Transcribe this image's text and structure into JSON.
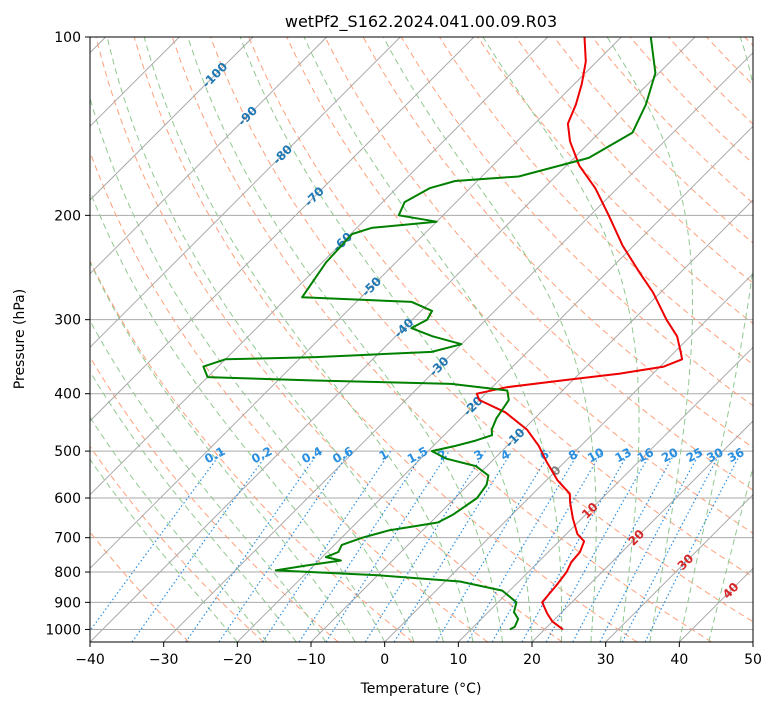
{
  "chart_data": {
    "type": "line",
    "subtype": "skew-T log-P diagram",
    "title": "wetPf2_S162.2024.041.00.09.R03",
    "xlabel": "Temperature (°C)",
    "ylabel": "Pressure (hPa)",
    "xlim": [
      -40,
      50
    ],
    "ylim": [
      1050,
      100
    ],
    "y_scale": "log",
    "x_ticks": [
      "−40",
      "−30",
      "−20",
      "−10",
      "0",
      "10",
      "20",
      "30",
      "40",
      "50"
    ],
    "x_tick_values": [
      -40,
      -30,
      -20,
      -10,
      0,
      10,
      20,
      30,
      40,
      50
    ],
    "y_ticks": [
      "100",
      "200",
      "300",
      "400",
      "500",
      "600",
      "700",
      "800",
      "900",
      "1000"
    ],
    "y_tick_values": [
      100,
      200,
      300,
      400,
      500,
      600,
      700,
      800,
      900,
      1000
    ],
    "grid": true,
    "colors": {
      "temperature": "#ee0000",
      "dewpoint": "#008000",
      "isotherm": "#aaaaaa",
      "dry_adiabat": "#ffa07a",
      "moist_adiabat": "#90c890",
      "mixing_ratio": "#2a8fe0"
    },
    "series": [
      {
        "role": "temperature",
        "color": "#ee0000",
        "points": [
          {
            "p": 1000,
            "t": 22.5
          },
          {
            "p": 970,
            "t": 20.0
          },
          {
            "p": 940,
            "t": 18.2
          },
          {
            "p": 900,
            "t": 16.0
          },
          {
            "p": 870,
            "t": 15.8
          },
          {
            "p": 840,
            "t": 15.6
          },
          {
            "p": 800,
            "t": 15.2
          },
          {
            "p": 770,
            "t": 14.5
          },
          {
            "p": 740,
            "t": 14.3
          },
          {
            "p": 710,
            "t": 13.4
          },
          {
            "p": 690,
            "t": 11.5
          },
          {
            "p": 650,
            "t": 8.8
          },
          {
            "p": 610,
            "t": 6.2
          },
          {
            "p": 590,
            "t": 5.0
          },
          {
            "p": 560,
            "t": 1.5
          },
          {
            "p": 520,
            "t": -2.6
          },
          {
            "p": 490,
            "t": -5.7
          },
          {
            "p": 460,
            "t": -9.5
          },
          {
            "p": 430,
            "t": -14.8
          },
          {
            "p": 410,
            "t": -20.0
          },
          {
            "p": 400,
            "t": -21.2
          },
          {
            "p": 390,
            "t": -18.0
          },
          {
            "p": 380,
            "t": -11.5
          },
          {
            "p": 370,
            "t": -4.5
          },
          {
            "p": 360,
            "t": 0.5
          },
          {
            "p": 350,
            "t": 2.0
          },
          {
            "p": 340,
            "t": 0.8
          },
          {
            "p": 320,
            "t": -1.8
          },
          {
            "p": 300,
            "t": -5.5
          },
          {
            "p": 270,
            "t": -11.0
          },
          {
            "p": 250,
            "t": -15.5
          },
          {
            "p": 225,
            "t": -21.5
          },
          {
            "p": 200,
            "t": -27.5
          },
          {
            "p": 180,
            "t": -33.0
          },
          {
            "p": 165,
            "t": -38.2
          },
          {
            "p": 150,
            "t": -42.8
          },
          {
            "p": 140,
            "t": -45.5
          },
          {
            "p": 130,
            "t": -47.0
          },
          {
            "p": 120,
            "t": -49.0
          },
          {
            "p": 110,
            "t": -51.5
          },
          {
            "p": 100,
            "t": -55.0
          }
        ]
      },
      {
        "role": "dewpoint",
        "color": "#008000",
        "points": [
          {
            "p": 1000,
            "t": 15.3
          },
          {
            "p": 990,
            "t": 15.6
          },
          {
            "p": 960,
            "t": 15.0
          },
          {
            "p": 935,
            "t": 13.5
          },
          {
            "p": 900,
            "t": 12.5
          },
          {
            "p": 860,
            "t": 9.0
          },
          {
            "p": 830,
            "t": 2.0
          },
          {
            "p": 810,
            "t": -10.0
          },
          {
            "p": 795,
            "t": -24.5
          },
          {
            "p": 780,
            "t": -21.0
          },
          {
            "p": 765,
            "t": -17.0
          },
          {
            "p": 755,
            "t": -19.5
          },
          {
            "p": 740,
            "t": -18.5
          },
          {
            "p": 720,
            "t": -19.0
          },
          {
            "p": 700,
            "t": -17.2
          },
          {
            "p": 680,
            "t": -14.5
          },
          {
            "p": 660,
            "t": -9.0
          },
          {
            "p": 640,
            "t": -8.0
          },
          {
            "p": 600,
            "t": -7.0
          },
          {
            "p": 570,
            "t": -7.5
          },
          {
            "p": 550,
            "t": -8.5
          },
          {
            "p": 530,
            "t": -11.5
          },
          {
            "p": 515,
            "t": -16.5
          },
          {
            "p": 500,
            "t": -19.5
          },
          {
            "p": 490,
            "t": -17.0
          },
          {
            "p": 480,
            "t": -15.0
          },
          {
            "p": 470,
            "t": -13.5
          },
          {
            "p": 460,
            "t": -14.3
          },
          {
            "p": 440,
            "t": -15.2
          },
          {
            "p": 410,
            "t": -16.0
          },
          {
            "p": 395,
            "t": -17.5
          },
          {
            "p": 385,
            "t": -26.0
          },
          {
            "p": 380,
            "t": -45.0
          },
          {
            "p": 375,
            "t": -60.0
          },
          {
            "p": 360,
            "t": -62.0
          },
          {
            "p": 350,
            "t": -60.0
          },
          {
            "p": 347,
            "t": -48.0
          },
          {
            "p": 340,
            "t": -33.0
          },
          {
            "p": 330,
            "t": -30.0
          },
          {
            "p": 320,
            "t": -35.0
          },
          {
            "p": 310,
            "t": -39.0
          },
          {
            "p": 300,
            "t": -38.0
          },
          {
            "p": 290,
            "t": -38.5
          },
          {
            "p": 280,
            "t": -42.5
          },
          {
            "p": 275,
            "t": -58.0
          },
          {
            "p": 240,
            "t": -59.5
          },
          {
            "p": 215,
            "t": -59.8
          },
          {
            "p": 210,
            "t": -58.0
          },
          {
            "p": 205,
            "t": -50.0
          },
          {
            "p": 200,
            "t": -56.0
          },
          {
            "p": 190,
            "t": -57.0
          },
          {
            "p": 180,
            "t": -55.5
          },
          {
            "p": 175,
            "t": -53.0
          },
          {
            "p": 172,
            "t": -45.0
          },
          {
            "p": 160,
            "t": -38.0
          },
          {
            "p": 145,
            "t": -35.5
          },
          {
            "p": 130,
            "t": -37.5
          },
          {
            "p": 115,
            "t": -40.5
          },
          {
            "p": 100,
            "t": -46.0
          }
        ]
      }
    ],
    "dry_adiabat_labels": [
      "-100",
      "-90",
      "-80",
      "-70",
      "-60",
      "-50",
      "-40",
      "-30",
      "-20",
      "-10"
    ],
    "moist_adiabat_labels": [
      "0",
      "10",
      "20",
      "30",
      "40"
    ],
    "mixing_ratio_labels": [
      "0.1",
      "0.2",
      "0.4",
      "0.6",
      "1",
      "1.5",
      "2",
      "3",
      "4",
      "6",
      "8",
      "10",
      "13",
      "16",
      "20",
      "25",
      "30",
      "36"
    ]
  }
}
